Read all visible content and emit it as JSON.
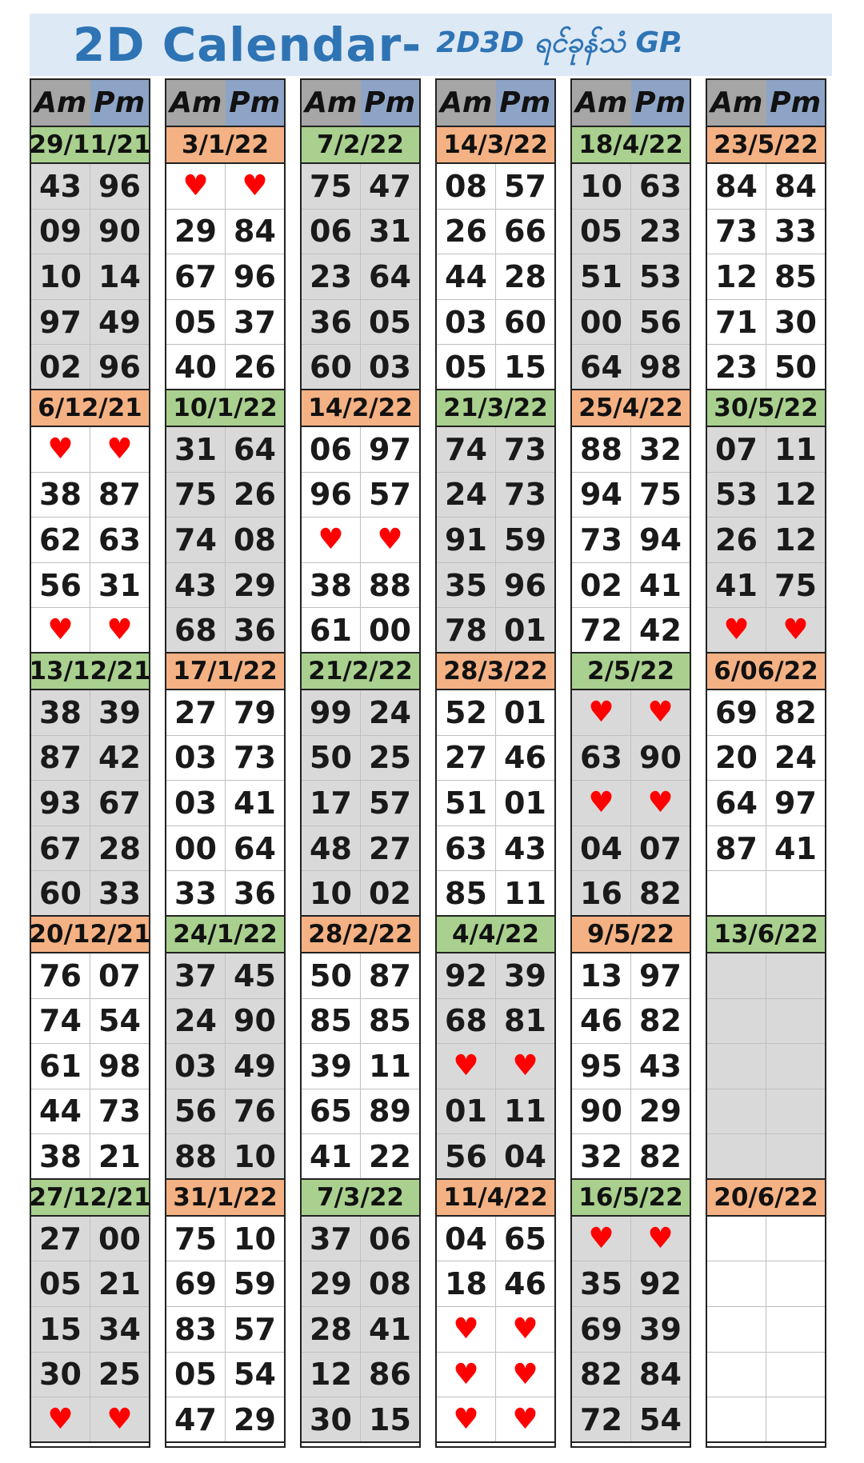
{
  "title": {
    "main": "2D Calendar-",
    "sub": "2D3D ရင်ခုန်သံ GP."
  },
  "header": {
    "am": "Am",
    "pm": "Pm"
  },
  "columns": [
    {
      "weeks": [
        {
          "date": "29/11/21",
          "date_color": "green",
          "shade": "gray",
          "rows": [
            [
              "43",
              "96"
            ],
            [
              "09",
              "90"
            ],
            [
              "10",
              "14"
            ],
            [
              "97",
              "49"
            ],
            [
              "02",
              "96"
            ]
          ]
        },
        {
          "date": "6/12/21",
          "date_color": "orange",
          "shade": "white",
          "rows": [
            [
              "♥",
              "♥"
            ],
            [
              "38",
              "87"
            ],
            [
              "62",
              "63"
            ],
            [
              "56",
              "31"
            ],
            [
              "♥",
              "♥"
            ]
          ]
        },
        {
          "date": "13/12/21",
          "date_color": "green",
          "shade": "gray",
          "rows": [
            [
              "38",
              "39"
            ],
            [
              "87",
              "42"
            ],
            [
              "93",
              "67"
            ],
            [
              "67",
              "28"
            ],
            [
              "60",
              "33"
            ]
          ]
        },
        {
          "date": "20/12/21",
          "date_color": "orange",
          "shade": "white",
          "rows": [
            [
              "76",
              "07"
            ],
            [
              "74",
              "54"
            ],
            [
              "61",
              "98"
            ],
            [
              "44",
              "73"
            ],
            [
              "38",
              "21"
            ]
          ]
        },
        {
          "date": "27/12/21",
          "date_color": "green",
          "shade": "gray",
          "rows": [
            [
              "27",
              "00"
            ],
            [
              "05",
              "21"
            ],
            [
              "15",
              "34"
            ],
            [
              "30",
              "25"
            ],
            [
              "♥",
              "♥"
            ]
          ]
        }
      ]
    },
    {
      "weeks": [
        {
          "date": "3/1/22",
          "date_color": "orange",
          "shade": "white",
          "rows": [
            [
              "♥",
              "♥"
            ],
            [
              "29",
              "84"
            ],
            [
              "67",
              "96"
            ],
            [
              "05",
              "37"
            ],
            [
              "40",
              "26"
            ]
          ]
        },
        {
          "date": "10/1/22",
          "date_color": "green",
          "shade": "gray",
          "rows": [
            [
              "31",
              "64"
            ],
            [
              "75",
              "26"
            ],
            [
              "74",
              "08"
            ],
            [
              "43",
              "29"
            ],
            [
              "68",
              "36"
            ]
          ]
        },
        {
          "date": "17/1/22",
          "date_color": "orange",
          "shade": "white",
          "rows": [
            [
              "27",
              "79"
            ],
            [
              "03",
              "73"
            ],
            [
              "03",
              "41"
            ],
            [
              "00",
              "64"
            ],
            [
              "33",
              "36"
            ]
          ]
        },
        {
          "date": "24/1/22",
          "date_color": "green",
          "shade": "gray",
          "rows": [
            [
              "37",
              "45"
            ],
            [
              "24",
              "90"
            ],
            [
              "03",
              "49"
            ],
            [
              "56",
              "76"
            ],
            [
              "88",
              "10"
            ]
          ]
        },
        {
          "date": "31/1/22",
          "date_color": "orange",
          "shade": "white",
          "rows": [
            [
              "75",
              "10"
            ],
            [
              "69",
              "59"
            ],
            [
              "83",
              "57"
            ],
            [
              "05",
              "54"
            ],
            [
              "47",
              "29"
            ]
          ]
        }
      ]
    },
    {
      "weeks": [
        {
          "date": "7/2/22",
          "date_color": "green",
          "shade": "gray",
          "rows": [
            [
              "75",
              "47"
            ],
            [
              "06",
              "31"
            ],
            [
              "23",
              "64"
            ],
            [
              "36",
              "05"
            ],
            [
              "60",
              "03"
            ]
          ]
        },
        {
          "date": "14/2/22",
          "date_color": "orange",
          "shade": "white",
          "rows": [
            [
              "06",
              "97"
            ],
            [
              "96",
              "57"
            ],
            [
              "♥",
              "♥"
            ],
            [
              "38",
              "88"
            ],
            [
              "61",
              "00"
            ]
          ]
        },
        {
          "date": "21/2/22",
          "date_color": "green",
          "shade": "gray",
          "rows": [
            [
              "99",
              "24"
            ],
            [
              "50",
              "25"
            ],
            [
              "17",
              "57"
            ],
            [
              "48",
              "27"
            ],
            [
              "10",
              "02"
            ]
          ]
        },
        {
          "date": "28/2/22",
          "date_color": "orange",
          "shade": "white",
          "rows": [
            [
              "50",
              "87"
            ],
            [
              "85",
              "85"
            ],
            [
              "39",
              "11"
            ],
            [
              "65",
              "89"
            ],
            [
              "41",
              "22"
            ]
          ]
        },
        {
          "date": "7/3/22",
          "date_color": "green",
          "shade": "gray",
          "rows": [
            [
              "37",
              "06"
            ],
            [
              "29",
              "08"
            ],
            [
              "28",
              "41"
            ],
            [
              "12",
              "86"
            ],
            [
              "30",
              "15"
            ]
          ]
        }
      ]
    },
    {
      "weeks": [
        {
          "date": "14/3/22",
          "date_color": "orange",
          "shade": "white",
          "rows": [
            [
              "08",
              "57"
            ],
            [
              "26",
              "66"
            ],
            [
              "44",
              "28"
            ],
            [
              "03",
              "60"
            ],
            [
              "05",
              "15"
            ]
          ]
        },
        {
          "date": "21/3/22",
          "date_color": "green",
          "shade": "gray",
          "rows": [
            [
              "74",
              "73"
            ],
            [
              "24",
              "73"
            ],
            [
              "91",
              "59"
            ],
            [
              "35",
              "96"
            ],
            [
              "78",
              "01"
            ]
          ]
        },
        {
          "date": "28/3/22",
          "date_color": "orange",
          "shade": "white",
          "rows": [
            [
              "52",
              "01"
            ],
            [
              "27",
              "46"
            ],
            [
              "51",
              "01"
            ],
            [
              "63",
              "43"
            ],
            [
              "85",
              "11"
            ]
          ]
        },
        {
          "date": "4/4/22",
          "date_color": "green",
          "shade": "gray",
          "rows": [
            [
              "92",
              "39"
            ],
            [
              "68",
              "81"
            ],
            [
              "♥",
              "♥"
            ],
            [
              "01",
              "11"
            ],
            [
              "56",
              "04"
            ]
          ]
        },
        {
          "date": "11/4/22",
          "date_color": "orange",
          "shade": "white",
          "rows": [
            [
              "04",
              "65"
            ],
            [
              "18",
              "46"
            ],
            [
              "♥",
              "♥"
            ],
            [
              "♥",
              "♥"
            ],
            [
              "♥",
              "♥"
            ]
          ]
        }
      ]
    },
    {
      "weeks": [
        {
          "date": "18/4/22",
          "date_color": "green",
          "shade": "gray",
          "rows": [
            [
              "10",
              "63"
            ],
            [
              "05",
              "23"
            ],
            [
              "51",
              "53"
            ],
            [
              "00",
              "56"
            ],
            [
              "64",
              "98"
            ]
          ]
        },
        {
          "date": "25/4/22",
          "date_color": "orange",
          "shade": "white",
          "rows": [
            [
              "88",
              "32"
            ],
            [
              "94",
              "75"
            ],
            [
              "73",
              "94"
            ],
            [
              "02",
              "41"
            ],
            [
              "72",
              "42"
            ]
          ]
        },
        {
          "date": "2/5/22",
          "date_color": "green",
          "shade": "gray",
          "rows": [
            [
              "♥",
              "♥"
            ],
            [
              "63",
              "90"
            ],
            [
              "♥",
              "♥"
            ],
            [
              "04",
              "07"
            ],
            [
              "16",
              "82"
            ]
          ]
        },
        {
          "date": "9/5/22",
          "date_color": "orange",
          "shade": "white",
          "rows": [
            [
              "13",
              "97"
            ],
            [
              "46",
              "82"
            ],
            [
              "95",
              "43"
            ],
            [
              "90",
              "29"
            ],
            [
              "32",
              "82"
            ]
          ]
        },
        {
          "date": "16/5/22",
          "date_color": "green",
          "shade": "gray",
          "rows": [
            [
              "♥",
              "♥"
            ],
            [
              "35",
              "92"
            ],
            [
              "69",
              "39"
            ],
            [
              "82",
              "84"
            ],
            [
              "72",
              "54"
            ]
          ]
        }
      ]
    },
    {
      "weeks": [
        {
          "date": "23/5/22",
          "date_color": "orange",
          "shade": "white",
          "rows": [
            [
              "84",
              "84"
            ],
            [
              "73",
              "33"
            ],
            [
              "12",
              "85"
            ],
            [
              "71",
              "30"
            ],
            [
              "23",
              "50"
            ]
          ]
        },
        {
          "date": "30/5/22",
          "date_color": "green",
          "shade": "gray",
          "rows": [
            [
              "07",
              "11"
            ],
            [
              "53",
              "12"
            ],
            [
              "26",
              "12"
            ],
            [
              "41",
              "75"
            ],
            [
              "♥",
              "♥"
            ]
          ]
        },
        {
          "date": "6/06/22",
          "date_color": "orange",
          "shade": "white",
          "rows": [
            [
              "69",
              "82"
            ],
            [
              "20",
              "24"
            ],
            [
              "64",
              "97"
            ],
            [
              "87",
              "41"
            ],
            [
              "",
              ""
            ]
          ]
        },
        {
          "date": "13/6/22",
          "date_color": "green",
          "shade": "gray",
          "rows": [
            [
              "",
              ""
            ],
            [
              "",
              ""
            ],
            [
              "",
              ""
            ],
            [
              "",
              ""
            ],
            [
              "",
              ""
            ]
          ]
        },
        {
          "date": "20/6/22",
          "date_color": "orange",
          "shade": "white",
          "rows": [
            [
              "",
              ""
            ],
            [
              "",
              ""
            ],
            [
              "",
              ""
            ],
            [
              "",
              ""
            ],
            [
              "",
              ""
            ]
          ]
        }
      ]
    }
  ]
}
